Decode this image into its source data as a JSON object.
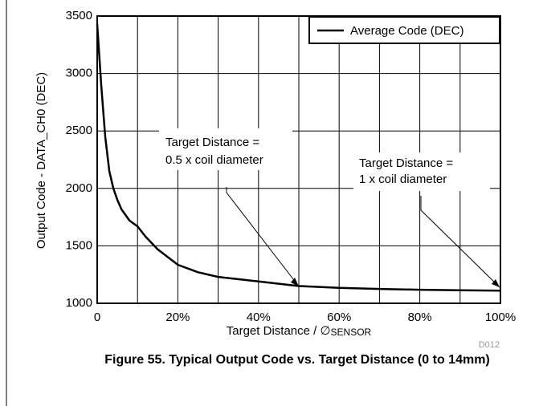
{
  "chart_data": {
    "type": "line",
    "title": "Figure 55. Typical Output Code vs. Target Distance (0 to 14mm)",
    "x_label": {
      "text": "Target Distance / ∅",
      "subscript": "SENSOR"
    },
    "y_label": "Output Code - DATA_CH0 (DEC)",
    "figure_id": "D012",
    "x": [
      0,
      1,
      2,
      3,
      4,
      5,
      6,
      8,
      10,
      12,
      15,
      20,
      25,
      30,
      40,
      50,
      60,
      70,
      80,
      90,
      100
    ],
    "series": [
      {
        "name": "Average Code (DEC)",
        "color": "#000000",
        "values": [
          3430,
          2900,
          2450,
          2150,
          2000,
          1900,
          1820,
          1720,
          1670,
          1580,
          1470,
          1335,
          1270,
          1230,
          1190,
          1150,
          1135,
          1125,
          1118,
          1113,
          1110
        ]
      }
    ],
    "xlim": [
      0,
      100
    ],
    "ylim": [
      1000,
      3500
    ],
    "xticks": [
      0,
      {
        "value": 20,
        "label": "20%"
      },
      {
        "value": 40,
        "label": "40%"
      },
      {
        "value": 60,
        "label": "60%"
      },
      {
        "value": 80,
        "label": "80%"
      },
      {
        "value": 100,
        "label": "100%"
      }
    ],
    "x_minor_grid": [
      10,
      30,
      50,
      70,
      90
    ],
    "yticks": [
      1000,
      1500,
      2000,
      2500,
      3000,
      3500
    ],
    "grid": true,
    "legend": "top-right",
    "annotations": [
      {
        "lines": [
          "Target Distance =",
          "0.5 x coil diameter"
        ]
      },
      {
        "lines": [
          "Target Distance =",
          "1 x coil diameter"
        ]
      }
    ]
  }
}
